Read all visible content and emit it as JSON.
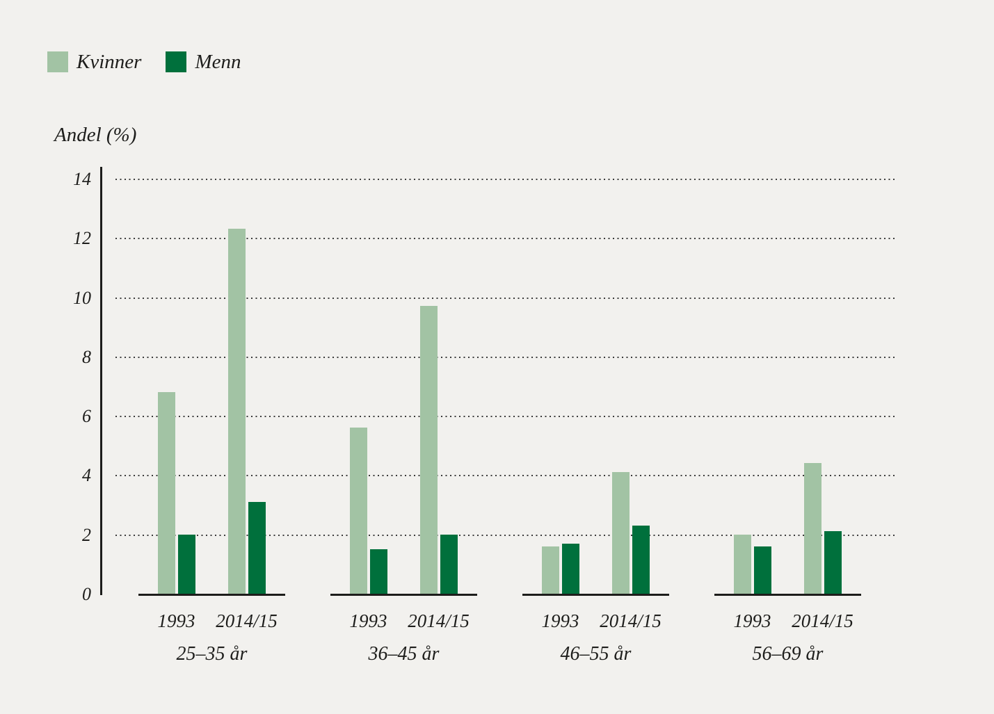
{
  "page": {
    "background_color": "#f2f1ee",
    "text_color": "#1d1d1b"
  },
  "legend": {
    "position": "top-left",
    "items": [
      {
        "label": "Kvinner",
        "color": "#a2c3a4"
      },
      {
        "label": "Menn",
        "color": "#00703c"
      }
    ]
  },
  "chart_data": {
    "type": "bar",
    "title": "",
    "ylabel": "Andel (%)",
    "xlabel": "",
    "ylim": [
      0,
      14
    ],
    "yticks": [
      0,
      2,
      4,
      6,
      8,
      10,
      12,
      14
    ],
    "grid": "horizontal dotted lines at 2,4,6,8,10,12,14",
    "legend_position": "top-left",
    "categories": [
      "25–35 år",
      "36–45 år",
      "46–55 år",
      "56–69 år"
    ],
    "x": [
      "1993",
      "2014/15"
    ],
    "series": [
      {
        "name": "Kvinner",
        "color": "#a2c3a4",
        "values": [
          [
            6.8,
            12.3
          ],
          [
            5.6,
            9.7
          ],
          [
            1.6,
            4.1
          ],
          [
            2.0,
            4.4
          ]
        ]
      },
      {
        "name": "Menn",
        "color": "#00703c",
        "values": [
          [
            2.0,
            3.1
          ],
          [
            1.5,
            2.0
          ],
          [
            1.7,
            2.3
          ],
          [
            1.6,
            2.1
          ]
        ]
      }
    ],
    "axis_color": "#1d1d1b",
    "gridline_color": "#3b3b3b"
  }
}
